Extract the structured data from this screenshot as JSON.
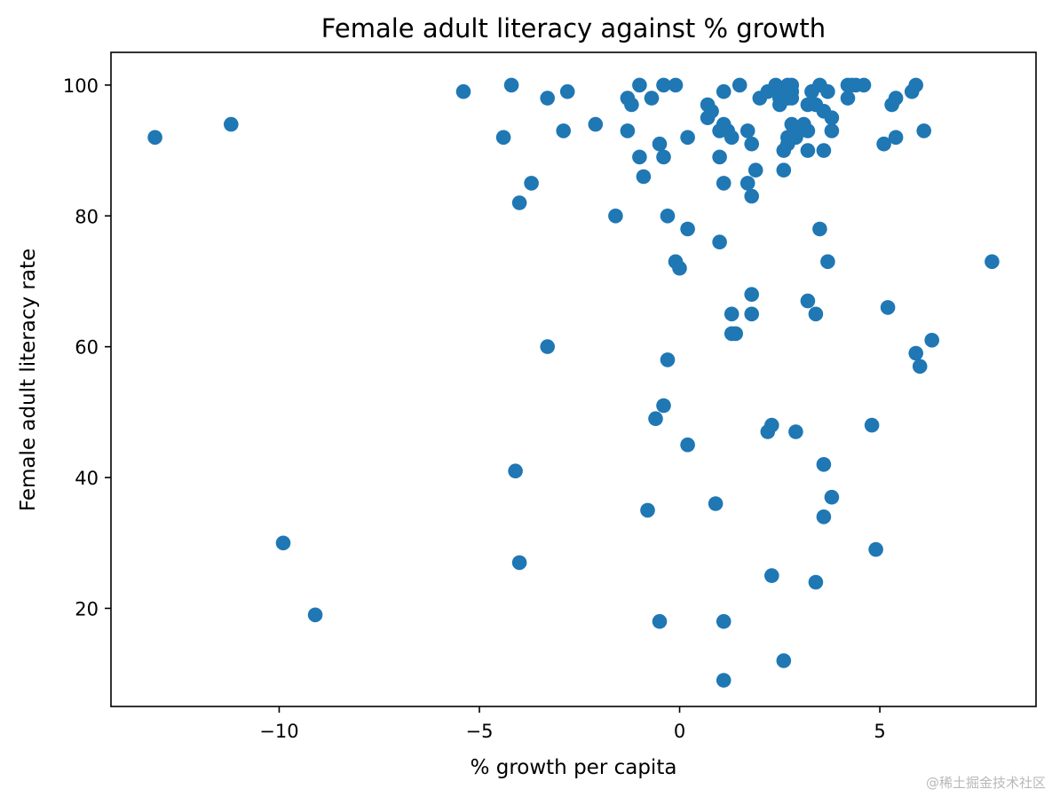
{
  "chart_data": {
    "type": "scatter",
    "title": "Female adult literacy against % growth",
    "xlabel": "% growth per capita",
    "ylabel": "Female adult literacy rate",
    "xlim": [
      -14.2,
      8.9
    ],
    "ylim": [
      5,
      105
    ],
    "xticks": [
      -10,
      -5,
      0,
      5
    ],
    "xtick_labels": [
      "−10",
      "−5",
      "0",
      "5"
    ],
    "yticks": [
      20,
      40,
      60,
      80,
      100
    ],
    "ytick_labels": [
      "20",
      "40",
      "60",
      "80",
      "100"
    ],
    "grid": false,
    "legend": "none",
    "marker_color": "#1f77b4",
    "points": [
      {
        "x": -13.1,
        "y": 92
      },
      {
        "x": -11.2,
        "y": 94
      },
      {
        "x": -9.9,
        "y": 30
      },
      {
        "x": -9.1,
        "y": 19
      },
      {
        "x": -5.4,
        "y": 99
      },
      {
        "x": -4.4,
        "y": 92
      },
      {
        "x": -4.2,
        "y": 100
      },
      {
        "x": -4.1,
        "y": 41
      },
      {
        "x": -4.0,
        "y": 82
      },
      {
        "x": -4.0,
        "y": 27
      },
      {
        "x": -3.7,
        "y": 85
      },
      {
        "x": -3.3,
        "y": 98
      },
      {
        "x": -3.3,
        "y": 60
      },
      {
        "x": -2.9,
        "y": 93
      },
      {
        "x": -2.8,
        "y": 99
      },
      {
        "x": -2.1,
        "y": 94
      },
      {
        "x": -1.6,
        "y": 80
      },
      {
        "x": -1.3,
        "y": 98
      },
      {
        "x": -1.3,
        "y": 93
      },
      {
        "x": -1.2,
        "y": 97
      },
      {
        "x": -1.0,
        "y": 100
      },
      {
        "x": -1.0,
        "y": 89
      },
      {
        "x": -0.9,
        "y": 86
      },
      {
        "x": -0.8,
        "y": 35
      },
      {
        "x": -0.7,
        "y": 98
      },
      {
        "x": -0.6,
        "y": 49
      },
      {
        "x": -0.5,
        "y": 91
      },
      {
        "x": -0.5,
        "y": 18
      },
      {
        "x": -0.4,
        "y": 100
      },
      {
        "x": -0.4,
        "y": 89
      },
      {
        "x": -0.4,
        "y": 51
      },
      {
        "x": -0.3,
        "y": 80
      },
      {
        "x": -0.3,
        "y": 58
      },
      {
        "x": -0.1,
        "y": 100
      },
      {
        "x": -0.1,
        "y": 73
      },
      {
        "x": 0.0,
        "y": 72
      },
      {
        "x": 0.2,
        "y": 92
      },
      {
        "x": 0.2,
        "y": 78
      },
      {
        "x": 0.2,
        "y": 45
      },
      {
        "x": 0.7,
        "y": 97
      },
      {
        "x": 0.7,
        "y": 95
      },
      {
        "x": 0.8,
        "y": 96
      },
      {
        "x": 0.9,
        "y": 36
      },
      {
        "x": 1.0,
        "y": 93
      },
      {
        "x": 1.0,
        "y": 89
      },
      {
        "x": 1.0,
        "y": 76
      },
      {
        "x": 1.1,
        "y": 99
      },
      {
        "x": 1.1,
        "y": 94
      },
      {
        "x": 1.1,
        "y": 85
      },
      {
        "x": 1.1,
        "y": 18
      },
      {
        "x": 1.1,
        "y": 9
      },
      {
        "x": 1.2,
        "y": 93
      },
      {
        "x": 1.3,
        "y": 92
      },
      {
        "x": 1.3,
        "y": 65
      },
      {
        "x": 1.3,
        "y": 62
      },
      {
        "x": 1.4,
        "y": 62
      },
      {
        "x": 1.5,
        "y": 100
      },
      {
        "x": 1.7,
        "y": 93
      },
      {
        "x": 1.7,
        "y": 85
      },
      {
        "x": 1.8,
        "y": 91
      },
      {
        "x": 1.8,
        "y": 83
      },
      {
        "x": 1.8,
        "y": 68
      },
      {
        "x": 1.8,
        "y": 65
      },
      {
        "x": 1.9,
        "y": 87
      },
      {
        "x": 2.0,
        "y": 98
      },
      {
        "x": 2.2,
        "y": 99
      },
      {
        "x": 2.2,
        "y": 47
      },
      {
        "x": 2.3,
        "y": 48
      },
      {
        "x": 2.3,
        "y": 25
      },
      {
        "x": 2.4,
        "y": 100
      },
      {
        "x": 2.5,
        "y": 98
      },
      {
        "x": 2.5,
        "y": 97
      },
      {
        "x": 2.6,
        "y": 99
      },
      {
        "x": 2.6,
        "y": 90
      },
      {
        "x": 2.6,
        "y": 87
      },
      {
        "x": 2.6,
        "y": 12
      },
      {
        "x": 2.7,
        "y": 100
      },
      {
        "x": 2.7,
        "y": 98
      },
      {
        "x": 2.7,
        "y": 92
      },
      {
        "x": 2.7,
        "y": 91
      },
      {
        "x": 2.8,
        "y": 100
      },
      {
        "x": 2.8,
        "y": 99
      },
      {
        "x": 2.8,
        "y": 98
      },
      {
        "x": 2.8,
        "y": 94
      },
      {
        "x": 2.9,
        "y": 92
      },
      {
        "x": 2.9,
        "y": 47
      },
      {
        "x": 3.0,
        "y": 93
      },
      {
        "x": 3.1,
        "y": 94
      },
      {
        "x": 3.2,
        "y": 97
      },
      {
        "x": 3.2,
        "y": 93
      },
      {
        "x": 3.2,
        "y": 90
      },
      {
        "x": 3.2,
        "y": 67
      },
      {
        "x": 3.3,
        "y": 99
      },
      {
        "x": 3.4,
        "y": 97
      },
      {
        "x": 3.4,
        "y": 65
      },
      {
        "x": 3.4,
        "y": 24
      },
      {
        "x": 3.5,
        "y": 100
      },
      {
        "x": 3.5,
        "y": 78
      },
      {
        "x": 3.6,
        "y": 96
      },
      {
        "x": 3.6,
        "y": 90
      },
      {
        "x": 3.6,
        "y": 42
      },
      {
        "x": 3.6,
        "y": 34
      },
      {
        "x": 3.7,
        "y": 99
      },
      {
        "x": 3.7,
        "y": 73
      },
      {
        "x": 3.8,
        "y": 95
      },
      {
        "x": 3.8,
        "y": 93
      },
      {
        "x": 3.8,
        "y": 37
      },
      {
        "x": 4.2,
        "y": 100
      },
      {
        "x": 4.2,
        "y": 98
      },
      {
        "x": 4.3,
        "y": 100
      },
      {
        "x": 4.4,
        "y": 100
      },
      {
        "x": 4.6,
        "y": 100
      },
      {
        "x": 4.8,
        "y": 48
      },
      {
        "x": 4.9,
        "y": 29
      },
      {
        "x": 5.1,
        "y": 91
      },
      {
        "x": 5.2,
        "y": 66
      },
      {
        "x": 5.3,
        "y": 97
      },
      {
        "x": 5.4,
        "y": 98
      },
      {
        "x": 5.4,
        "y": 92
      },
      {
        "x": 5.8,
        "y": 99
      },
      {
        "x": 5.9,
        "y": 100
      },
      {
        "x": 5.9,
        "y": 59
      },
      {
        "x": 6.0,
        "y": 57
      },
      {
        "x": 6.1,
        "y": 93
      },
      {
        "x": 6.3,
        "y": 61
      },
      {
        "x": 7.8,
        "y": 73
      }
    ]
  },
  "watermark": "@稀土掘金技术社区"
}
